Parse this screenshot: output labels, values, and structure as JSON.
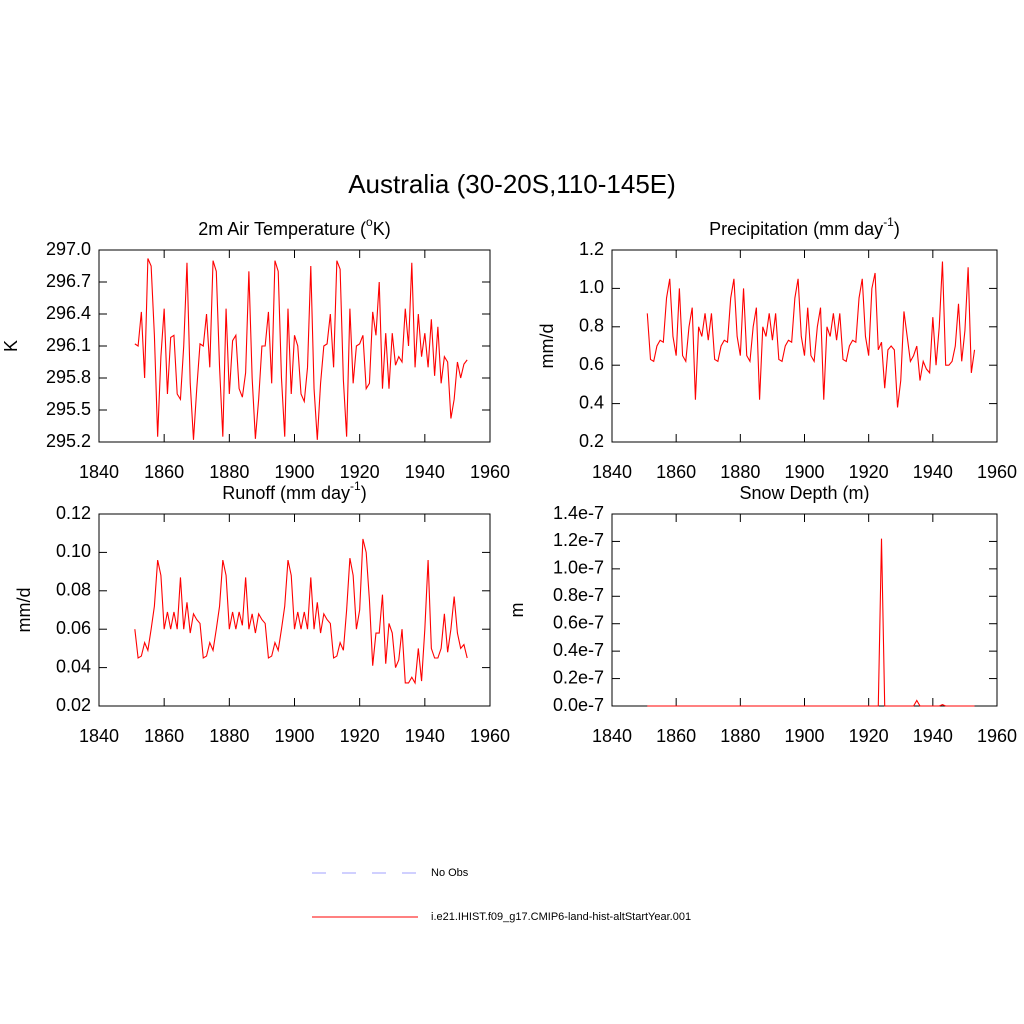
{
  "title": "Australia (30-20S,110-145E)",
  "legend": [
    {
      "name": "No Obs",
      "color": "#a0a0ff",
      "style": "dashed"
    },
    {
      "name": "i.e21.IHIST.f09_g17.CMIP6-land-hist-altStartYear.001",
      "color": "#ff0000",
      "style": "solid"
    }
  ],
  "chart_data": [
    {
      "type": "line",
      "title": {
        "text": "2m Air Temperature (",
        "sup": "o",
        "after": "K)"
      },
      "ylabel": "K",
      "color": "#ff0000",
      "x": [
        1851,
        1852,
        1853,
        1854,
        1855,
        1856,
        1857,
        1858,
        1859,
        1860,
        1861,
        1862,
        1863,
        1864,
        1865,
        1866,
        1867,
        1868,
        1869,
        1870,
        1871,
        1872,
        1873,
        1874,
        1875,
        1876,
        1877,
        1878,
        1879,
        1880,
        1881,
        1882,
        1883,
        1884,
        1885,
        1886,
        1887,
        1888,
        1889,
        1890,
        1891,
        1892,
        1893,
        1894,
        1895,
        1896,
        1897,
        1898,
        1899,
        1900,
        1901,
        1902,
        1903,
        1904,
        1905,
        1906,
        1907,
        1908,
        1909,
        1910,
        1911,
        1912,
        1913,
        1914,
        1915,
        1916,
        1917,
        1918,
        1919,
        1920,
        1921,
        1922,
        1923,
        1924,
        1925,
        1926,
        1927,
        1928,
        1929,
        1930,
        1931,
        1932,
        1933,
        1934,
        1935,
        1936,
        1937,
        1938,
        1939,
        1940,
        1941,
        1942,
        1943,
        1944,
        1945,
        1946,
        1947,
        1948,
        1949,
        1950,
        1951,
        1952,
        1953
      ],
      "values": [
        296.12,
        296.1,
        296.42,
        295.8,
        296.92,
        296.85,
        296.2,
        295.25,
        296.0,
        296.45,
        295.65,
        296.18,
        296.2,
        295.65,
        295.6,
        296.1,
        296.88,
        295.75,
        295.22,
        295.7,
        296.12,
        296.1,
        296.4,
        295.9,
        296.9,
        296.8,
        295.9,
        295.25,
        296.45,
        295.65,
        296.15,
        296.2,
        295.7,
        295.62,
        295.85,
        296.8,
        295.8,
        295.23,
        295.6,
        296.1,
        296.1,
        296.42,
        295.75,
        296.9,
        296.8,
        295.8,
        295.25,
        296.45,
        295.65,
        296.2,
        296.1,
        295.65,
        295.58,
        295.9,
        296.85,
        295.7,
        295.22,
        295.75,
        296.1,
        296.12,
        296.4,
        295.9,
        296.9,
        296.82,
        295.78,
        295.25,
        296.45,
        295.75,
        296.1,
        296.12,
        296.2,
        295.7,
        295.75,
        296.42,
        296.2,
        296.7,
        295.7,
        296.22,
        295.7,
        296.22,
        295.92,
        296.0,
        295.95,
        296.45,
        296.1,
        296.88,
        295.9,
        296.4,
        296.0,
        296.22,
        295.9,
        296.35,
        295.82,
        296.28,
        295.75,
        296.0,
        295.95,
        295.42,
        295.6,
        295.95,
        295.8,
        295.93,
        295.97
      ],
      "xlim": [
        1840,
        1960
      ],
      "xticks": [
        1840,
        1860,
        1880,
        1900,
        1920,
        1940,
        1960
      ],
      "ylim": [
        295.2,
        297.0
      ],
      "yticks": [
        295.2,
        295.5,
        295.8,
        296.1,
        296.4,
        296.7,
        {
          "value": 297,
          "label": "297.0"
        }
      ]
    },
    {
      "type": "line",
      "title": {
        "text": "Precipitation (mm day",
        "sup": "-1",
        "after": ")"
      },
      "ylabel": "mm/d",
      "color": "#ff0000",
      "x": [
        1851,
        1852,
        1853,
        1854,
        1855,
        1856,
        1857,
        1858,
        1859,
        1860,
        1861,
        1862,
        1863,
        1864,
        1865,
        1866,
        1867,
        1868,
        1869,
        1870,
        1871,
        1872,
        1873,
        1874,
        1875,
        1876,
        1877,
        1878,
        1879,
        1880,
        1881,
        1882,
        1883,
        1884,
        1885,
        1886,
        1887,
        1888,
        1889,
        1890,
        1891,
        1892,
        1893,
        1894,
        1895,
        1896,
        1897,
        1898,
        1899,
        1900,
        1901,
        1902,
        1903,
        1904,
        1905,
        1906,
        1907,
        1908,
        1909,
        1910,
        1911,
        1912,
        1913,
        1914,
        1915,
        1916,
        1917,
        1918,
        1919,
        1920,
        1921,
        1922,
        1923,
        1924,
        1925,
        1926,
        1927,
        1928,
        1929,
        1930,
        1931,
        1932,
        1933,
        1934,
        1935,
        1936,
        1937,
        1938,
        1939,
        1940,
        1941,
        1942,
        1943,
        1944,
        1945,
        1946,
        1947,
        1948,
        1949,
        1950,
        1951,
        1952,
        1953
      ],
      "values": [
        0.87,
        0.63,
        0.62,
        0.7,
        0.73,
        0.72,
        0.95,
        1.05,
        0.75,
        0.65,
        1.0,
        0.65,
        0.62,
        0.8,
        0.9,
        0.42,
        0.8,
        0.75,
        0.87,
        0.73,
        0.87,
        0.63,
        0.62,
        0.7,
        0.73,
        0.72,
        0.95,
        1.05,
        0.75,
        0.65,
        1.0,
        0.65,
        0.62,
        0.8,
        0.9,
        0.42,
        0.8,
        0.75,
        0.87,
        0.73,
        0.87,
        0.63,
        0.62,
        0.7,
        0.73,
        0.72,
        0.95,
        1.05,
        0.75,
        0.65,
        0.9,
        0.65,
        0.62,
        0.8,
        0.9,
        0.42,
        0.8,
        0.75,
        0.87,
        0.73,
        0.87,
        0.63,
        0.62,
        0.7,
        0.73,
        0.72,
        0.95,
        1.05,
        0.75,
        0.65,
        1.0,
        1.08,
        0.68,
        0.72,
        0.48,
        0.68,
        0.7,
        0.68,
        0.38,
        0.52,
        0.88,
        0.75,
        0.62,
        0.65,
        0.7,
        0.52,
        0.62,
        0.58,
        0.56,
        0.85,
        0.6,
        0.8,
        1.14,
        0.6,
        0.6,
        0.62,
        0.7,
        0.92,
        0.62,
        0.78,
        1.11,
        0.56,
        0.68
      ],
      "xlim": [
        1840,
        1960
      ],
      "xticks": [
        1840,
        1860,
        1880,
        1900,
        1920,
        1940,
        1960
      ],
      "ylim": [
        0.2,
        1.2
      ],
      "yticks": [
        0.2,
        0.4,
        0.6,
        0.8,
        {
          "value": 1,
          "label": "1.0"
        },
        1.2
      ]
    },
    {
      "type": "line",
      "title": {
        "text": "Runoff (mm day",
        "sup": "-1",
        "after": ")"
      },
      "ylabel": "mm/d",
      "color": "#ff0000",
      "x": [
        1851,
        1852,
        1853,
        1854,
        1855,
        1856,
        1857,
        1858,
        1859,
        1860,
        1861,
        1862,
        1863,
        1864,
        1865,
        1866,
        1867,
        1868,
        1869,
        1870,
        1871,
        1872,
        1873,
        1874,
        1875,
        1876,
        1877,
        1878,
        1879,
        1880,
        1881,
        1882,
        1883,
        1884,
        1885,
        1886,
        1887,
        1888,
        1889,
        1890,
        1891,
        1892,
        1893,
        1894,
        1895,
        1896,
        1897,
        1898,
        1899,
        1900,
        1901,
        1902,
        1903,
        1904,
        1905,
        1906,
        1907,
        1908,
        1909,
        1910,
        1911,
        1912,
        1913,
        1914,
        1915,
        1916,
        1917,
        1918,
        1919,
        1920,
        1921,
        1922,
        1923,
        1924,
        1925,
        1926,
        1927,
        1928,
        1929,
        1930,
        1931,
        1932,
        1933,
        1934,
        1935,
        1936,
        1937,
        1938,
        1939,
        1940,
        1941,
        1942,
        1943,
        1944,
        1945,
        1946,
        1947,
        1948,
        1949,
        1950,
        1951,
        1952,
        1953
      ],
      "values": [
        0.06,
        0.045,
        0.046,
        0.053,
        0.049,
        0.06,
        0.072,
        0.096,
        0.088,
        0.06,
        0.069,
        0.06,
        0.069,
        0.06,
        0.087,
        0.06,
        0.074,
        0.058,
        0.068,
        0.065,
        0.063,
        0.045,
        0.046,
        0.053,
        0.049,
        0.06,
        0.072,
        0.096,
        0.088,
        0.06,
        0.069,
        0.06,
        0.069,
        0.062,
        0.087,
        0.06,
        0.068,
        0.058,
        0.068,
        0.065,
        0.063,
        0.045,
        0.046,
        0.053,
        0.049,
        0.06,
        0.072,
        0.096,
        0.088,
        0.06,
        0.069,
        0.06,
        0.069,
        0.06,
        0.087,
        0.06,
        0.074,
        0.058,
        0.068,
        0.065,
        0.063,
        0.045,
        0.046,
        0.053,
        0.049,
        0.07,
        0.097,
        0.088,
        0.06,
        0.07,
        0.107,
        0.1,
        0.075,
        0.041,
        0.058,
        0.058,
        0.078,
        0.042,
        0.063,
        0.058,
        0.04,
        0.044,
        0.06,
        0.032,
        0.032,
        0.035,
        0.032,
        0.05,
        0.033,
        0.06,
        0.096,
        0.05,
        0.045,
        0.045,
        0.05,
        0.068,
        0.048,
        0.06,
        0.077,
        0.058,
        0.05,
        0.052,
        0.045
      ],
      "xlim": [
        1840,
        1960
      ],
      "xticks": [
        1840,
        1860,
        1880,
        1900,
        1920,
        1940,
        1960
      ],
      "ylim": [
        0.02,
        0.12
      ],
      "yticks": [
        0.02,
        0.04,
        0.06,
        0.08,
        {
          "value": 0.1,
          "label": "0.10"
        },
        0.12
      ]
    },
    {
      "type": "line",
      "title": "Snow Depth (m)",
      "ylabel": "m",
      "color": "#ff0000",
      "x": [
        1851,
        1852,
        1853,
        1854,
        1855,
        1856,
        1857,
        1858,
        1859,
        1860,
        1861,
        1862,
        1863,
        1864,
        1865,
        1866,
        1867,
        1868,
        1869,
        1870,
        1871,
        1872,
        1873,
        1874,
        1875,
        1876,
        1877,
        1878,
        1879,
        1880,
        1881,
        1882,
        1883,
        1884,
        1885,
        1886,
        1887,
        1888,
        1889,
        1890,
        1891,
        1892,
        1893,
        1894,
        1895,
        1896,
        1897,
        1898,
        1899,
        1900,
        1901,
        1902,
        1903,
        1904,
        1905,
        1906,
        1907,
        1908,
        1909,
        1910,
        1911,
        1912,
        1913,
        1914,
        1915,
        1916,
        1917,
        1918,
        1919,
        1920,
        1921,
        1922,
        1923,
        1924,
        1925,
        1926,
        1927,
        1928,
        1929,
        1930,
        1931,
        1932,
        1933,
        1934,
        1935,
        1936,
        1937,
        1938,
        1939,
        1940,
        1941,
        1942,
        1943,
        1944,
        1945,
        1946,
        1947,
        1948,
        1949,
        1950,
        1951,
        1952,
        1953
      ],
      "values": [
        0,
        0,
        0,
        0,
        0,
        0,
        0,
        0,
        0,
        0,
        0,
        0,
        0,
        0,
        0,
        0,
        0,
        0,
        0,
        0,
        0,
        0,
        0,
        0,
        0,
        0,
        0,
        0,
        0,
        0,
        0,
        0,
        0,
        0,
        0,
        0,
        0,
        0,
        0,
        0,
        0,
        0,
        0,
        0,
        0,
        0,
        0,
        0,
        0,
        0,
        0,
        0,
        0,
        0,
        0,
        0,
        0,
        0,
        0,
        0,
        0,
        0,
        0,
        0,
        0,
        0,
        0,
        0,
        0,
        0,
        0,
        0,
        0,
        1.22e-07,
        0,
        0,
        0,
        0,
        0,
        0,
        0,
        0,
        0,
        0,
        4e-09,
        0,
        0,
        0,
        0,
        0,
        0,
        0,
        1e-09,
        0,
        0,
        0,
        0,
        0,
        0,
        0,
        0,
        0,
        0
      ],
      "xlim": [
        1840,
        1960
      ],
      "xticks": [
        1840,
        1860,
        1880,
        1900,
        1920,
        1940,
        1960
      ],
      "ylim": [
        0,
        1.4e-07
      ],
      "yticks": [
        {
          "value": 0,
          "label": "0.0e-7"
        },
        {
          "value": 2e-08,
          "label": "0.2e-7"
        },
        {
          "value": 4e-08,
          "label": "0.4e-7"
        },
        {
          "value": 6e-08,
          "label": "0.6e-7"
        },
        {
          "value": 8e-08,
          "label": "0.8e-7"
        },
        {
          "value": 1e-07,
          "label": "1.0e-7"
        },
        {
          "value": 1.2e-07,
          "label": "1.2e-7"
        },
        {
          "value": 1.4e-07,
          "label": "1.4e-7"
        }
      ]
    }
  ]
}
